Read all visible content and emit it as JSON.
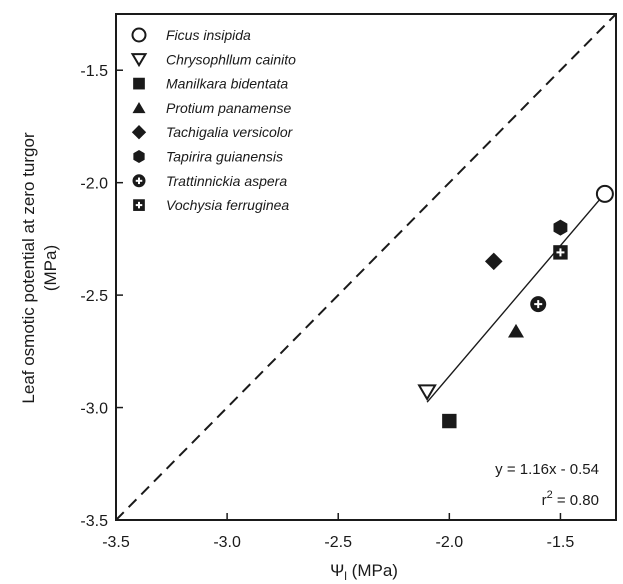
{
  "chart_data": {
    "type": "scatter",
    "xlabel": "Ψl (MPa)",
    "ylabel_line1": "Leaf osmotic potential at zero turgor",
    "ylabel_line2": "(MPa)",
    "xlim": [
      -3.5,
      -1.25
    ],
    "ylim": [
      -3.5,
      -1.25
    ],
    "xticks": [
      -3.5,
      -3.0,
      -2.5,
      -2.0,
      -1.5
    ],
    "xtick_labels": [
      "-3.5",
      "-3.0",
      "-2.5",
      "-2.0",
      "-1.5"
    ],
    "yticks": [
      -3.5,
      -3.0,
      -2.5,
      -2.0,
      -1.5
    ],
    "ytick_labels": [
      "-3.5",
      "-3.0",
      "-2.5",
      "-2.0",
      "-1.5"
    ],
    "legend_position": "top-left",
    "grid": false,
    "series": [
      {
        "name": "Ficus insipida",
        "marker": "open-circle",
        "x": -1.3,
        "y": -2.05
      },
      {
        "name": "Chrysophllum cainito",
        "marker": "open-triangle-down",
        "x": -2.1,
        "y": -2.93
      },
      {
        "name": "Manilkara bidentata",
        "marker": "filled-square",
        "x": -2.0,
        "y": -3.06
      },
      {
        "name": "Protium panamense",
        "marker": "filled-triangle-up",
        "x": -1.7,
        "y": -2.66
      },
      {
        "name": "Tachigalia versicolor",
        "marker": "filled-diamond",
        "x": -1.8,
        "y": -2.35
      },
      {
        "name": "Tapirira guianensis",
        "marker": "filled-hexagon",
        "x": -1.5,
        "y": -2.2
      },
      {
        "name": "Trattinnickia aspera",
        "marker": "circle-with-plus",
        "x": -1.6,
        "y": -2.54
      },
      {
        "name": "Vochysia ferruginea",
        "marker": "square-with-plus",
        "x": -1.5,
        "y": -2.31
      }
    ],
    "regression": {
      "slope": 1.16,
      "intercept": -0.54,
      "x_range": [
        -2.1,
        -1.3
      ]
    },
    "reference_line": {
      "style": "dashed",
      "x": [
        -3.5,
        -1.25
      ],
      "y": [
        -3.5,
        -1.25
      ]
    },
    "equation_text": "y = 1.16x - 0.54",
    "r2_text": "r",
    "r2_sup": "2",
    "r2_value": " = 0.80"
  }
}
